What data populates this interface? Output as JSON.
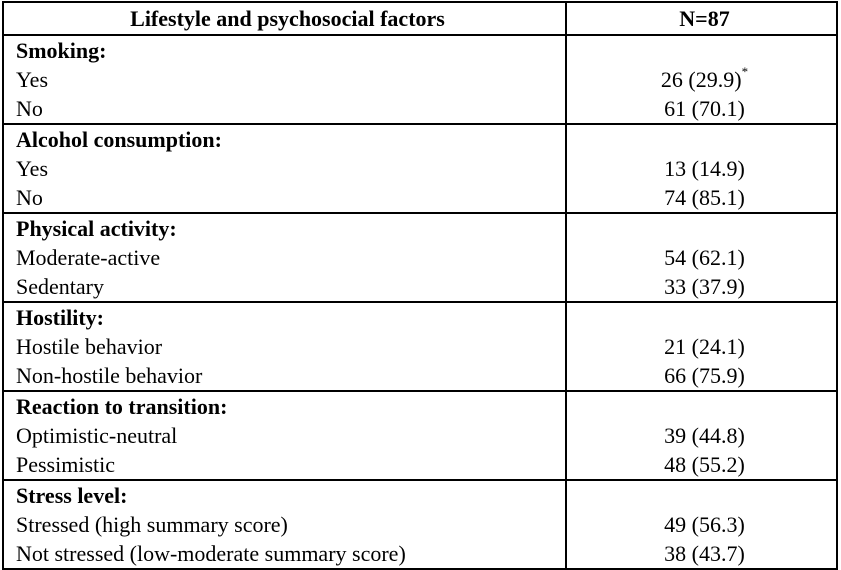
{
  "table": {
    "headers": [
      "Lifestyle and psychosocial factors",
      "N=87"
    ],
    "groups": [
      {
        "category": "Smoking:",
        "rows": [
          {
            "label": "Yes",
            "value": "26 (29.9)",
            "note": "*"
          },
          {
            "label": "No",
            "value": "61 (70.1)"
          }
        ]
      },
      {
        "category": "Alcohol consumption:",
        "rows": [
          {
            "label": "Yes",
            "value": "13 (14.9)"
          },
          {
            "label": "No",
            "value": "74 (85.1)"
          }
        ]
      },
      {
        "category": "Physical activity:",
        "rows": [
          {
            "label": "Moderate-active",
            "value": "54 (62.1)"
          },
          {
            "label": "Sedentary",
            "value": "33 (37.9)"
          }
        ]
      },
      {
        "category": "Hostility:",
        "rows": [
          {
            "label": "Hostile behavior",
            "value": "21 (24.1)"
          },
          {
            "label": "Non-hostile behavior",
            "value": "66 (75.9)"
          }
        ]
      },
      {
        "category": "Reaction to transition:",
        "rows": [
          {
            "label": "Optimistic-neutral",
            "value": "39 (44.8)"
          },
          {
            "label": "Pessimistic",
            "value": "48 (55.2)"
          }
        ]
      },
      {
        "category": "Stress level:",
        "rows": [
          {
            "label": "Stressed (high summary score)",
            "value": "49 (56.3)"
          },
          {
            "label": "Not stressed (low-moderate summary score)",
            "value": "38 (43.7)"
          }
        ]
      }
    ]
  }
}
